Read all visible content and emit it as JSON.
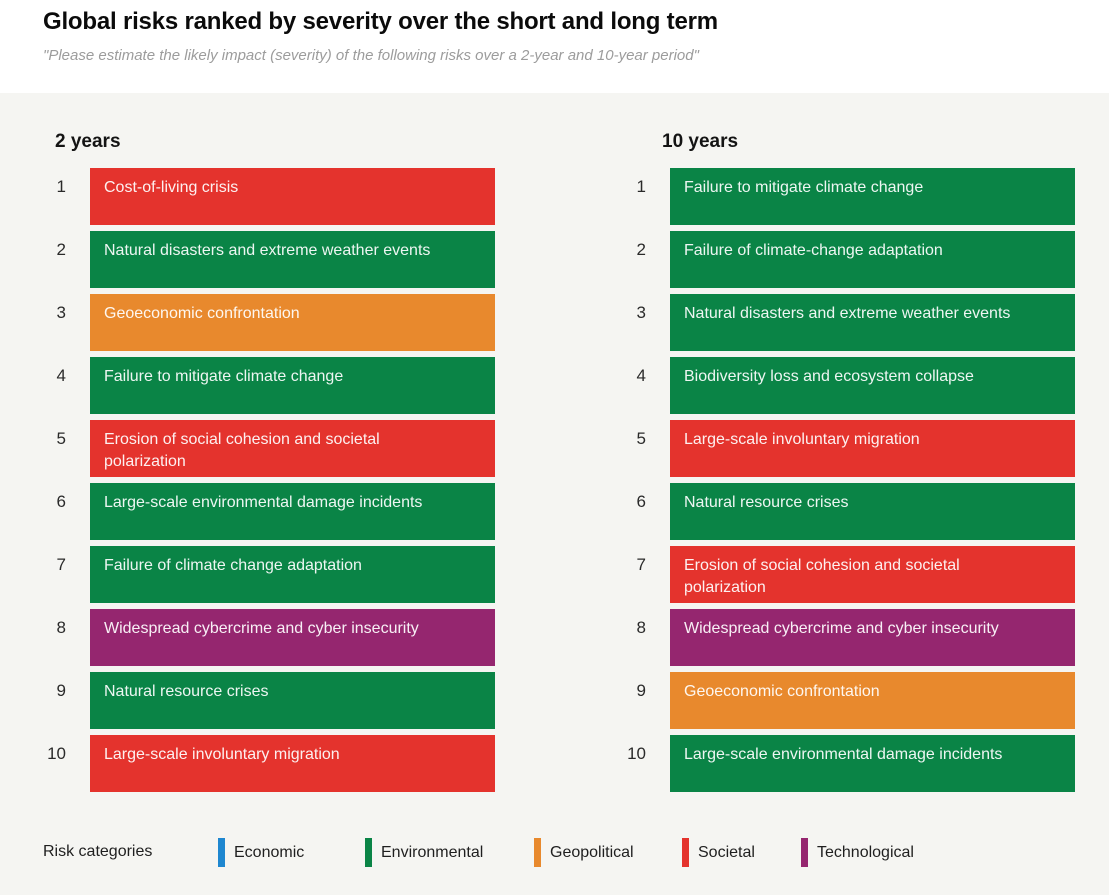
{
  "chart_data": {
    "type": "table",
    "title": "Global risks ranked by severity over the short and long term",
    "subtitle": "\"Please estimate the likely impact (severity) of the following risks over a 2-year and 10-year period\"",
    "legend_title": "Risk categories",
    "category_colors": {
      "economic": "#1E87D0",
      "environmental": "#0A8446",
      "geopolitical": "#E8892D",
      "societal": "#E4332D",
      "technological": "#95266F"
    },
    "legend": [
      {
        "label": "Economic",
        "category": "economic"
      },
      {
        "label": "Environmental",
        "category": "environmental"
      },
      {
        "label": "Geopolitical",
        "category": "geopolitical"
      },
      {
        "label": "Societal",
        "category": "societal"
      },
      {
        "label": "Technological",
        "category": "technological"
      }
    ],
    "columns": [
      {
        "heading": "2 years",
        "rows": [
          {
            "rank": "1",
            "risk": "Cost-of-living crisis",
            "category": "societal"
          },
          {
            "rank": "2",
            "risk": "Natural disasters and extreme weather events",
            "category": "environmental"
          },
          {
            "rank": "3",
            "risk": "Geoeconomic confrontation",
            "category": "geopolitical"
          },
          {
            "rank": "4",
            "risk": "Failure to mitigate climate change",
            "category": "environmental"
          },
          {
            "rank": "5",
            "risk": "Erosion of social cohesion and societal polarization",
            "category": "societal"
          },
          {
            "rank": "6",
            "risk": "Large-scale environmental damage incidents",
            "category": "environmental"
          },
          {
            "rank": "7",
            "risk": "Failure of climate change adaptation",
            "category": "environmental"
          },
          {
            "rank": "8",
            "risk": "Widespread cybercrime and cyber insecurity",
            "category": "technological"
          },
          {
            "rank": "9",
            "risk": "Natural resource crises",
            "category": "environmental"
          },
          {
            "rank": "10",
            "risk": "Large-scale involuntary migration",
            "category": "societal"
          }
        ]
      },
      {
        "heading": "10 years",
        "rows": [
          {
            "rank": "1",
            "risk": "Failure to mitigate climate change",
            "category": "environmental"
          },
          {
            "rank": "2",
            "risk": "Failure of climate-change adaptation",
            "category": "environmental"
          },
          {
            "rank": "3",
            "risk": "Natural disasters and extreme weather events",
            "category": "environmental"
          },
          {
            "rank": "4",
            "risk": "Biodiversity loss and ecosystem collapse",
            "category": "environmental"
          },
          {
            "rank": "5",
            "risk": "Large-scale involuntary migration",
            "category": "societal"
          },
          {
            "rank": "6",
            "risk": "Natural resource crises",
            "category": "environmental"
          },
          {
            "rank": "7",
            "risk": "Erosion of social cohesion and societal polarization",
            "category": "societal"
          },
          {
            "rank": "8",
            "risk": "Widespread cybercrime and cyber insecurity",
            "category": "technological"
          },
          {
            "rank": "9",
            "risk": "Geoeconomic confrontation",
            "category": "geopolitical"
          },
          {
            "rank": "10",
            "risk": "Large-scale environmental damage incidents",
            "category": "environmental"
          }
        ]
      }
    ]
  }
}
